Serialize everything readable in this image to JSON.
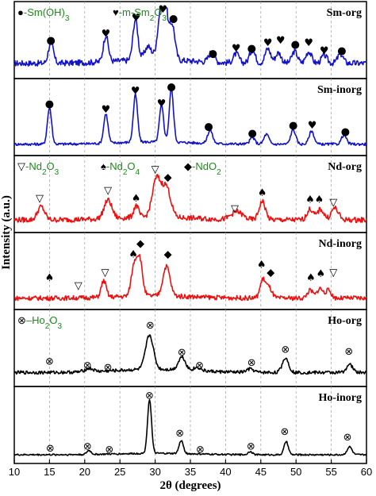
{
  "chart_data": {
    "type": "line",
    "title": "",
    "xlabel": "2θ (degrees)",
    "ylabel": "Intensity (a.u.)",
    "xlim": [
      10,
      60
    ],
    "x_ticks": [
      10,
      15,
      20,
      25,
      30,
      35,
      40,
      45,
      50,
      55,
      60
    ],
    "grid": "vertical dashed at ticks",
    "marker_symbols": {
      "sm_oh3": "●",
      "m_sm2o3": "♥",
      "nd2o3": "▽",
      "nd2o4": "♠",
      "ndo2": "◆",
      "ho2o3": "⊗"
    },
    "panels": [
      {
        "name": "Sm-org",
        "color": "#1212cc",
        "legend": [
          {
            "symbol": "●",
            "text": "-Sm(OH)",
            "sub": "3"
          },
          {
            "symbol": "♥",
            "text": "-m-Sm",
            "sub": "2",
            "text2": "O",
            "sub2": "3"
          }
        ],
        "peaks": [
          {
            "x": 15.2,
            "h": 0.32,
            "w": 0.35
          },
          {
            "x": 23.0,
            "h": 0.4,
            "w": 0.35
          },
          {
            "x": 27.2,
            "h": 0.62,
            "w": 0.35
          },
          {
            "x": 29.0,
            "h": 0.2,
            "w": 0.5
          },
          {
            "x": 30.8,
            "h": 0.7,
            "w": 0.45
          },
          {
            "x": 31.4,
            "h": 0.78,
            "w": 0.35
          },
          {
            "x": 32.4,
            "h": 0.55,
            "w": 0.4
          },
          {
            "x": 38.0,
            "h": 0.15,
            "w": 0.4
          },
          {
            "x": 41.5,
            "h": 0.14,
            "w": 0.4
          },
          {
            "x": 43.8,
            "h": 0.2,
            "w": 0.4
          },
          {
            "x": 46.0,
            "h": 0.22,
            "w": 0.4
          },
          {
            "x": 47.5,
            "h": 0.16,
            "w": 0.4
          },
          {
            "x": 49.8,
            "h": 0.18,
            "w": 0.4
          },
          {
            "x": 51.8,
            "h": 0.18,
            "w": 0.4
          },
          {
            "x": 54.0,
            "h": 0.12,
            "w": 0.4
          },
          {
            "x": 56.3,
            "h": 0.14,
            "w": 0.4
          }
        ],
        "base": 0.16,
        "noise": 0.045,
        "markers": [
          {
            "x": 15.2,
            "sym": "●",
            "level": 0.52
          },
          {
            "x": 23.0,
            "sym": "♥",
            "level": 0.62
          },
          {
            "x": 27.3,
            "sym": "♥",
            "level": 0.86
          },
          {
            "x": 31.1,
            "sym": "♥",
            "level": 0.99
          },
          {
            "x": 32.6,
            "sym": "●",
            "level": 0.85
          },
          {
            "x": 38.2,
            "sym": "●",
            "level": 0.32
          },
          {
            "x": 41.5,
            "sym": "♥",
            "level": 0.4
          },
          {
            "x": 43.7,
            "sym": "●",
            "level": 0.4
          },
          {
            "x": 46.0,
            "sym": "♥",
            "level": 0.48
          },
          {
            "x": 47.8,
            "sym": "♥",
            "level": 0.52
          },
          {
            "x": 49.9,
            "sym": "●",
            "level": 0.46
          },
          {
            "x": 51.8,
            "sym": "♥",
            "level": 0.48
          },
          {
            "x": 54.0,
            "sym": "♥",
            "level": 0.36
          },
          {
            "x": 56.5,
            "sym": "●",
            "level": 0.36
          }
        ]
      },
      {
        "name": "Sm-inorg",
        "color": "#1212cc",
        "legend": [],
        "peaks": [
          {
            "x": 15.0,
            "h": 0.55,
            "w": 0.3
          },
          {
            "x": 23.0,
            "h": 0.45,
            "w": 0.3
          },
          {
            "x": 27.2,
            "h": 0.72,
            "w": 0.3
          },
          {
            "x": 30.9,
            "h": 0.55,
            "w": 0.3
          },
          {
            "x": 32.3,
            "h": 0.8,
            "w": 0.3
          },
          {
            "x": 37.8,
            "h": 0.2,
            "w": 0.35
          },
          {
            "x": 43.8,
            "h": 0.1,
            "w": 0.35
          },
          {
            "x": 45.8,
            "h": 0.15,
            "w": 0.35
          },
          {
            "x": 49.6,
            "h": 0.22,
            "w": 0.35
          },
          {
            "x": 52.2,
            "h": 0.2,
            "w": 0.35
          },
          {
            "x": 56.8,
            "h": 0.14,
            "w": 0.35
          }
        ],
        "base": 0.1,
        "noise": 0.02,
        "markers": [
          {
            "x": 15.0,
            "sym": "●",
            "level": 0.72
          },
          {
            "x": 23.0,
            "sym": "♥",
            "level": 0.64
          },
          {
            "x": 27.2,
            "sym": "♥",
            "level": 0.92
          },
          {
            "x": 30.9,
            "sym": "♥",
            "level": 0.73
          },
          {
            "x": 32.3,
            "sym": "●",
            "level": 0.98
          },
          {
            "x": 37.6,
            "sym": "●",
            "level": 0.38
          },
          {
            "x": 43.8,
            "sym": "●",
            "level": 0.28
          },
          {
            "x": 49.6,
            "sym": "●",
            "level": 0.4
          },
          {
            "x": 52.3,
            "sym": "♥",
            "level": 0.4
          },
          {
            "x": 57.0,
            "sym": "●",
            "level": 0.3
          }
        ]
      },
      {
        "name": "Nd-org",
        "color": "#ee1010",
        "legend": [
          {
            "symbol": "▽",
            "text": "-Nd",
            "sub": "2",
            "text2": "O",
            "sub2": "3"
          },
          {
            "symbol": "♠",
            "text": "-Nd",
            "sub": "2",
            "text2": "O",
            "sub2": "4"
          },
          {
            "symbol": "◆",
            "text": "-NdO",
            "sub": "2"
          }
        ],
        "peaks": [
          {
            "x": 13.8,
            "h": 0.2,
            "w": 0.5
          },
          {
            "x": 23.3,
            "h": 0.28,
            "w": 0.55
          },
          {
            "x": 27.3,
            "h": 0.18,
            "w": 0.35
          },
          {
            "x": 30.2,
            "h": 0.58,
            "w": 0.6
          },
          {
            "x": 31.6,
            "h": 0.45,
            "w": 0.6
          },
          {
            "x": 41.6,
            "h": 0.12,
            "w": 0.8
          },
          {
            "x": 45.2,
            "h": 0.28,
            "w": 0.45
          },
          {
            "x": 52.0,
            "h": 0.16,
            "w": 0.45
          },
          {
            "x": 53.5,
            "h": 0.16,
            "w": 0.45
          },
          {
            "x": 55.5,
            "h": 0.18,
            "w": 0.5
          }
        ],
        "base": 0.12,
        "noise": 0.04,
        "markers": [
          {
            "x": 13.6,
            "sym": "▽",
            "level": 0.46
          },
          {
            "x": 23.3,
            "sym": "▽",
            "level": 0.58
          },
          {
            "x": 27.3,
            "sym": "♠",
            "level": 0.46
          },
          {
            "x": 30.0,
            "sym": "▽",
            "level": 0.9
          },
          {
            "x": 31.8,
            "sym": "◆",
            "level": 0.78
          },
          {
            "x": 41.3,
            "sym": "▽",
            "level": 0.3
          },
          {
            "x": 45.2,
            "sym": "♠",
            "level": 0.54
          },
          {
            "x": 52.0,
            "sym": "♠",
            "level": 0.44
          },
          {
            "x": 53.3,
            "sym": "♠",
            "level": 0.44
          },
          {
            "x": 55.3,
            "sym": "▽",
            "level": 0.4
          }
        ]
      },
      {
        "name": "Nd-inorg",
        "color": "#ee1010",
        "legend": [],
        "peaks": [
          {
            "x": 22.7,
            "h": 0.25,
            "w": 0.35
          },
          {
            "x": 27.0,
            "h": 0.45,
            "w": 0.4
          },
          {
            "x": 27.8,
            "h": 0.55,
            "w": 0.4
          },
          {
            "x": 31.6,
            "h": 0.45,
            "w": 0.5
          },
          {
            "x": 45.3,
            "h": 0.28,
            "w": 0.4
          },
          {
            "x": 46.2,
            "h": 0.15,
            "w": 0.4
          },
          {
            "x": 52.0,
            "h": 0.12,
            "w": 0.4
          },
          {
            "x": 53.4,
            "h": 0.15,
            "w": 0.4
          },
          {
            "x": 54.6,
            "h": 0.12,
            "w": 0.4
          }
        ],
        "base": 0.1,
        "noise": 0.035,
        "markers": [
          {
            "x": 15.0,
            "sym": "♠",
            "level": 0.42
          },
          {
            "x": 19.1,
            "sym": "▽",
            "level": 0.3
          },
          {
            "x": 22.9,
            "sym": "▽",
            "level": 0.5
          },
          {
            "x": 26.9,
            "sym": "♠",
            "level": 0.78
          },
          {
            "x": 27.9,
            "sym": "◆",
            "level": 0.94
          },
          {
            "x": 31.8,
            "sym": "◆",
            "level": 0.78
          },
          {
            "x": 45.1,
            "sym": "♠",
            "level": 0.62
          },
          {
            "x": 46.4,
            "sym": "◆",
            "level": 0.5
          },
          {
            "x": 52.1,
            "sym": "♠",
            "level": 0.42
          },
          {
            "x": 53.5,
            "sym": "♠",
            "level": 0.48
          },
          {
            "x": 55.3,
            "sym": "▽",
            "level": 0.5
          }
        ]
      },
      {
        "name": "Ho-org",
        "color": "#000000",
        "legend": [
          {
            "symbol": "⊗",
            "text": "–Ho",
            "sub": "2",
            "text2": "O",
            "sub2": "3"
          }
        ],
        "peaks": [
          {
            "x": 20.6,
            "h": 0.05,
            "w": 0.6
          },
          {
            "x": 29.2,
            "h": 0.52,
            "w": 0.55
          },
          {
            "x": 33.8,
            "h": 0.2,
            "w": 0.5
          },
          {
            "x": 36.0,
            "h": 0.05,
            "w": 0.5
          },
          {
            "x": 43.5,
            "h": 0.05,
            "w": 0.5
          },
          {
            "x": 48.5,
            "h": 0.22,
            "w": 0.45
          },
          {
            "x": 57.6,
            "h": 0.12,
            "w": 0.45
          }
        ],
        "base": 0.14,
        "noise": 0.025,
        "markers": [
          {
            "x": 15.0,
            "sym": "⊗",
            "level": 0.32
          },
          {
            "x": 20.4,
            "sym": "⊗",
            "level": 0.26
          },
          {
            "x": 23.3,
            "sym": "⊗",
            "level": 0.23
          },
          {
            "x": 29.3,
            "sym": "⊗",
            "level": 0.87
          },
          {
            "x": 33.8,
            "sym": "⊗",
            "level": 0.46
          },
          {
            "x": 36.3,
            "sym": "⊗",
            "level": 0.26
          },
          {
            "x": 43.7,
            "sym": "⊗",
            "level": 0.3
          },
          {
            "x": 48.5,
            "sym": "⊗",
            "level": 0.5
          },
          {
            "x": 57.5,
            "sym": "⊗",
            "level": 0.47
          }
        ]
      },
      {
        "name": "Ho-inorg",
        "color": "#000000",
        "legend": [],
        "peaks": [
          {
            "x": 20.6,
            "h": 0.06,
            "w": 0.3
          },
          {
            "x": 29.2,
            "h": 0.82,
            "w": 0.28
          },
          {
            "x": 33.7,
            "h": 0.2,
            "w": 0.3
          },
          {
            "x": 43.5,
            "h": 0.05,
            "w": 0.3
          },
          {
            "x": 48.6,
            "h": 0.2,
            "w": 0.3
          },
          {
            "x": 57.6,
            "h": 0.12,
            "w": 0.35
          }
        ],
        "base": 0.06,
        "noise": 0.012,
        "markers": [
          {
            "x": 15.1,
            "sym": "⊗",
            "level": 0.17
          },
          {
            "x": 20.4,
            "sym": "⊗",
            "level": 0.2
          },
          {
            "x": 23.5,
            "sym": "⊗",
            "level": 0.15
          },
          {
            "x": 29.2,
            "sym": "⊗",
            "level": 0.97
          },
          {
            "x": 33.5,
            "sym": "⊗",
            "level": 0.4
          },
          {
            "x": 36.4,
            "sym": "⊗",
            "level": 0.15
          },
          {
            "x": 43.6,
            "sym": "⊗",
            "level": 0.2
          },
          {
            "x": 48.4,
            "sym": "⊗",
            "level": 0.42
          },
          {
            "x": 57.3,
            "sym": "⊗",
            "level": 0.34
          }
        ]
      }
    ]
  }
}
